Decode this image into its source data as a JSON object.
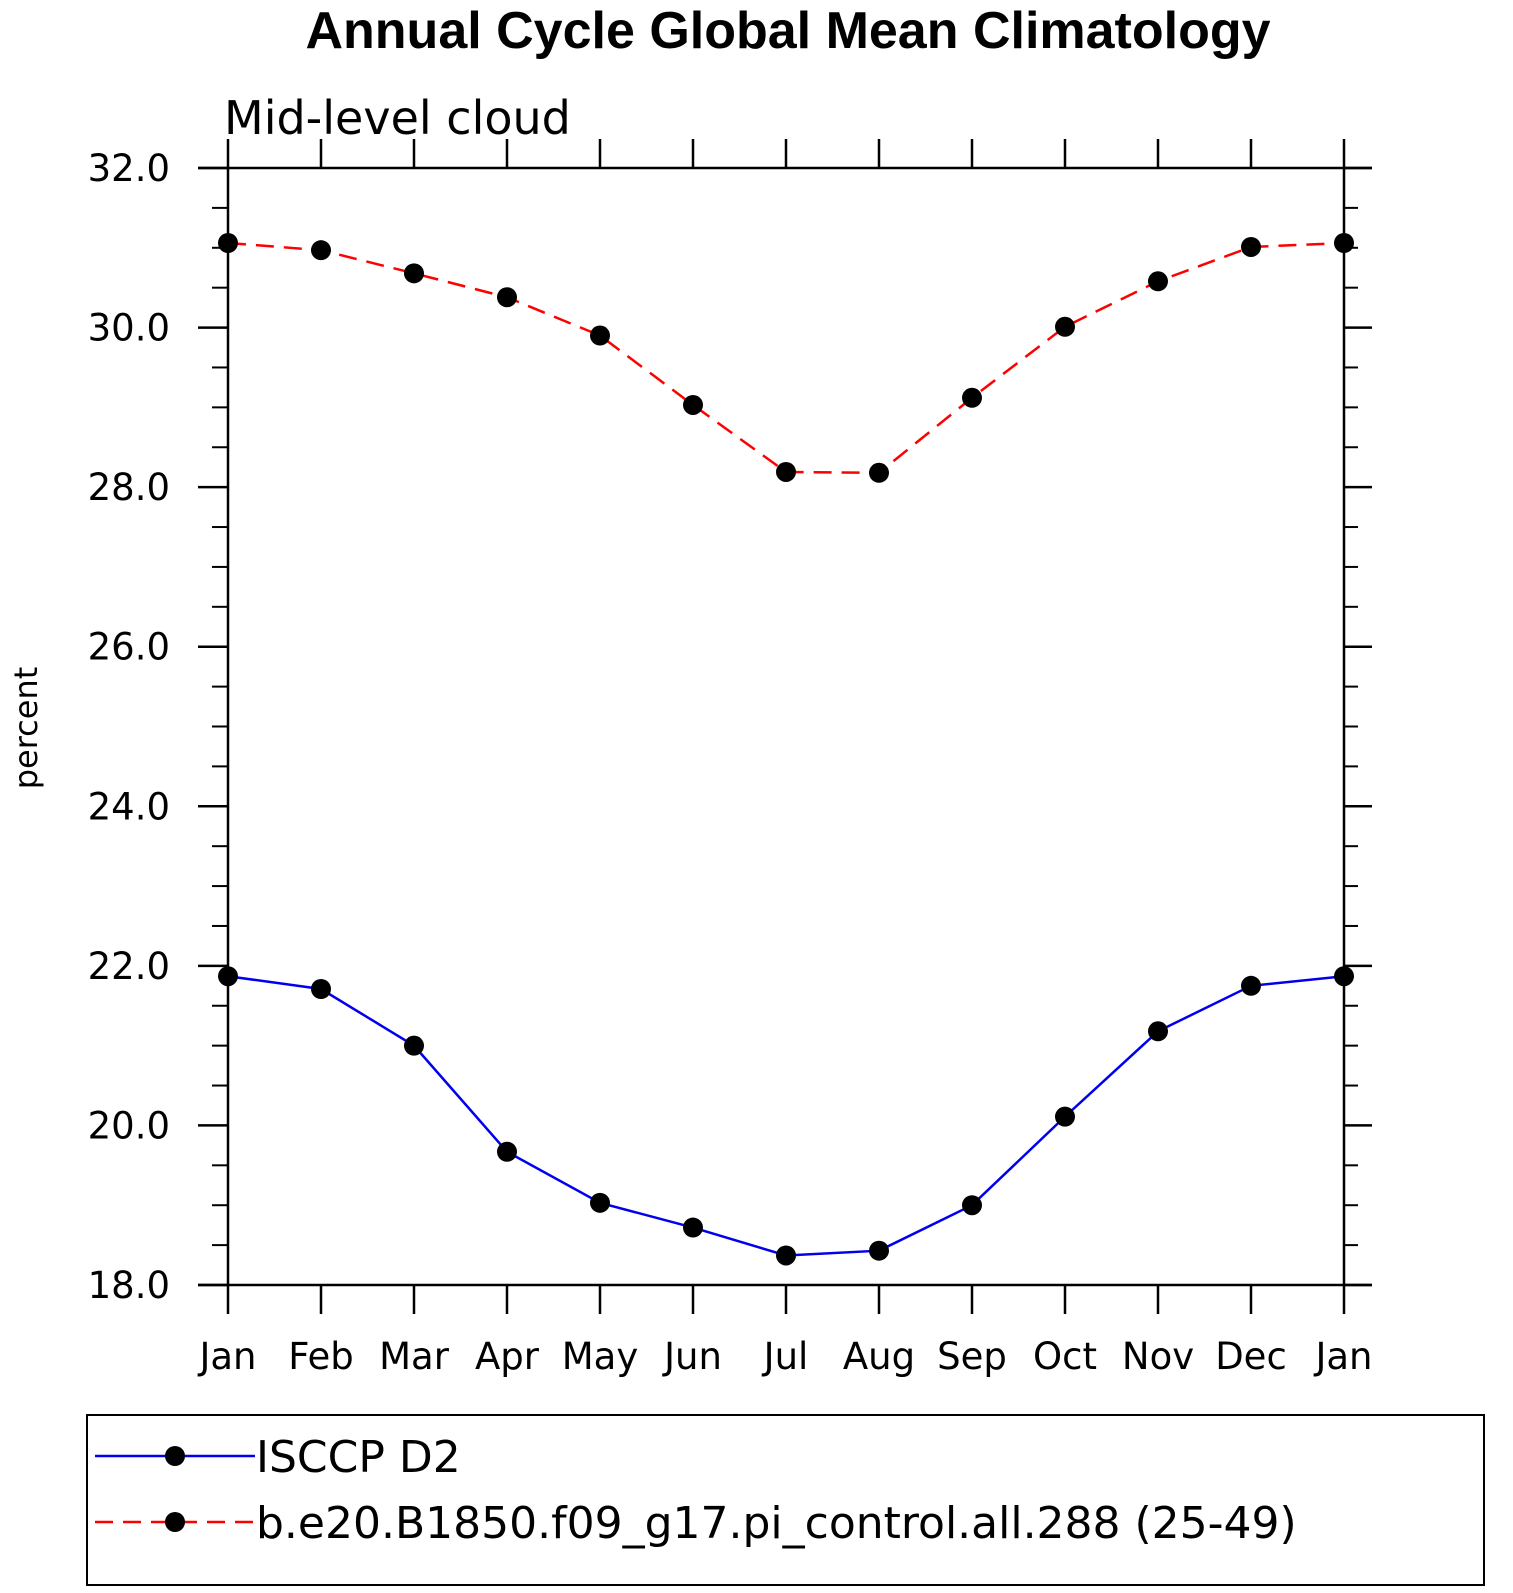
{
  "chart_data": {
    "type": "line",
    "title": "Annual Cycle Global Mean Climatology",
    "subtitle": "Mid-level cloud",
    "ylabel": "percent",
    "xlabel": "",
    "categories": [
      "Jan",
      "Feb",
      "Mar",
      "Apr",
      "May",
      "Jun",
      "Jul",
      "Aug",
      "Sep",
      "Oct",
      "Nov",
      "Dec",
      "Jan"
    ],
    "ylim": [
      18.0,
      32.0
    ],
    "yticks": [
      "18.0",
      "20.0",
      "22.0",
      "24.0",
      "26.0",
      "28.0",
      "30.0",
      "32.0"
    ],
    "ytick_values": [
      18,
      20,
      22,
      24,
      26,
      28,
      30,
      32
    ],
    "grid": false,
    "legend_position": "bottom",
    "series": [
      {
        "name": "ISCCP D2",
        "color": "#0000ee",
        "style": "solid",
        "marker": "filled-circle",
        "values": [
          21.87,
          21.71,
          21.0,
          19.67,
          19.03,
          18.72,
          18.37,
          18.43,
          19.0,
          20.11,
          21.18,
          21.75,
          21.87
        ]
      },
      {
        "name": "b.e20.B1850.f09_g17.pi_control.all.288 (25-49)",
        "color": "#ff0000",
        "style": "dashed",
        "marker": "filled-circle",
        "values": [
          31.06,
          30.97,
          30.68,
          30.38,
          29.9,
          29.03,
          28.19,
          28.18,
          29.12,
          30.01,
          30.58,
          31.01,
          31.06
        ]
      }
    ]
  }
}
